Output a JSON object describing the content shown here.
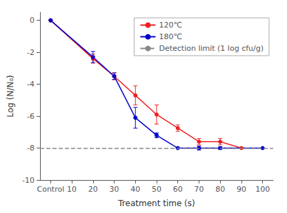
{
  "chart_data": {
    "type": "line",
    "xlabel": "Treatment time (s)",
    "ylabel": "Log (N/N₀)",
    "xlim": [
      -5,
      105
    ],
    "xticks": [
      {
        "value": 0,
        "label": "Control"
      },
      10,
      20,
      30,
      40,
      50,
      60,
      70,
      80,
      90,
      100
    ],
    "ylim": [
      -10,
      0.5
    ],
    "yticks": [
      0,
      -2,
      -4,
      -6,
      -8,
      -10
    ],
    "grid": false,
    "legend": "upper right",
    "series": [
      {
        "name": "120℃",
        "type": "line",
        "color": "#ee2020",
        "marker": "circle",
        "line_style": "solid",
        "x": [
          0,
          20,
          30,
          40,
          50,
          60,
          70,
          80,
          90
        ],
        "values": [
          0,
          -2.4,
          -3.5,
          -4.7,
          -5.9,
          -6.75,
          -7.6,
          -7.6,
          -8.0
        ],
        "errors": [
          0,
          0.28,
          0.22,
          0.6,
          0.6,
          0.2,
          0.2,
          0.2,
          0.0
        ]
      },
      {
        "name": "180℃",
        "type": "line",
        "color": "#0000cc",
        "marker": "circle",
        "line_style": "solid",
        "x": [
          0,
          20,
          30,
          40,
          50,
          60,
          70,
          80,
          100
        ],
        "values": [
          0,
          -2.3,
          -3.5,
          -6.1,
          -7.2,
          -8.0,
          -8.0,
          -8.0,
          -8.0
        ],
        "errors": [
          0,
          0.35,
          0.2,
          0.65,
          0.15,
          0.0,
          0.12,
          0.08,
          0.0
        ]
      },
      {
        "name": "Detection limit (1 log cfu/g)",
        "type": "hline",
        "color": "#888888",
        "line_style": "dashed",
        "values": [
          -8.0
        ]
      }
    ]
  }
}
